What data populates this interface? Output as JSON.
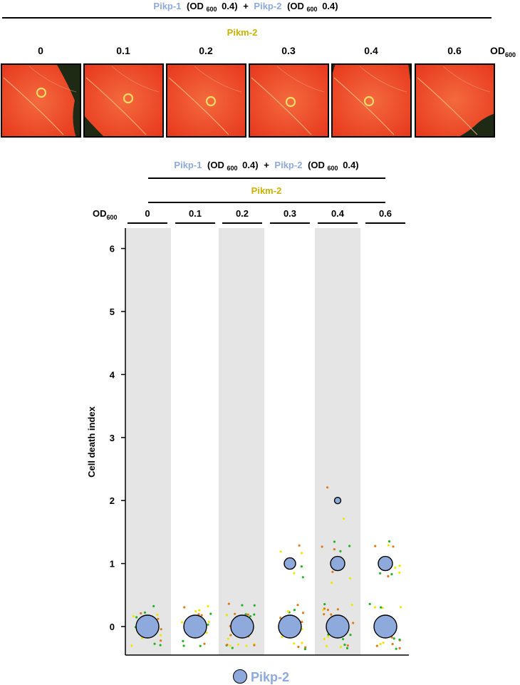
{
  "header": {
    "construct_a": "Pikp-1",
    "od_a_prefix": "(OD",
    "od_a_sub": "600",
    "od_a_value": "0.4)",
    "plus": "+",
    "construct_b": "Pikp-2",
    "od_b_prefix": "(OD",
    "od_b_sub": "600",
    "od_b_value": "0.4)",
    "titration": "Pikm-2",
    "od_label": "OD",
    "od_label_sub": "600"
  },
  "photo_row": {
    "labels": [
      "0",
      "0.1",
      "0.2",
      "0.3",
      "0.4",
      "0.6"
    ],
    "panel_count": 6
  },
  "colors": {
    "pikp": "#8EA9DB",
    "pikm": "#C8B400",
    "leaf_red": "#F04A28",
    "leaf_dark": "#1E2A14",
    "band": "#E5E5E5",
    "rep_yellow": "#F2E600",
    "rep_orange": "#E07B1A",
    "rep_green": "#22B422"
  },
  "chart_data": {
    "type": "scatter",
    "categories": [
      "0",
      "0.1",
      "0.2",
      "0.3",
      "0.4",
      "0.6"
    ],
    "ylabel": "Cell death index",
    "ylim": [
      -0.45,
      6.45
    ],
    "yticks": [
      0,
      1,
      2,
      3,
      4,
      5,
      6
    ],
    "legend": "bottom",
    "series": [
      {
        "name": "Pikp-2",
        "points": [
          {
            "x": "0",
            "y": 0,
            "size": "large"
          },
          {
            "x": "0.1",
            "y": 0,
            "size": "large"
          },
          {
            "x": "0.2",
            "y": 0,
            "size": "large"
          },
          {
            "x": "0.3",
            "y": 0,
            "size": "large"
          },
          {
            "x": "0.3",
            "y": 1,
            "size": "small"
          },
          {
            "x": "0.4",
            "y": 0,
            "size": "large"
          },
          {
            "x": "0.4",
            "y": 1,
            "size": "medium"
          },
          {
            "x": "0.4",
            "y": 2,
            "size": "tiny"
          },
          {
            "x": "0.6",
            "y": 0,
            "size": "large"
          },
          {
            "x": "0.6",
            "y": 1,
            "size": "medium"
          }
        ]
      }
    ]
  }
}
